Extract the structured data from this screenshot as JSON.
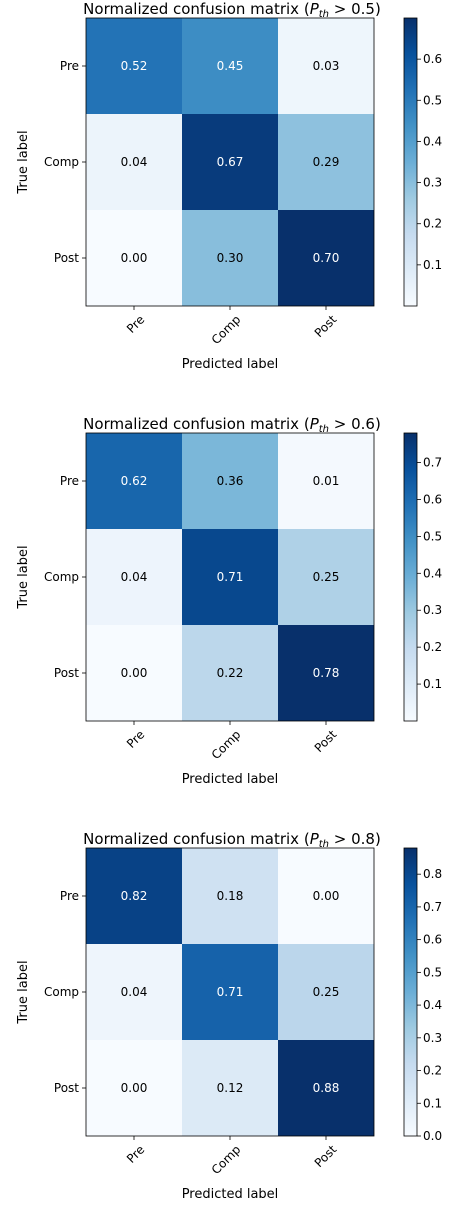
{
  "chart_data": [
    {
      "type": "heatmap",
      "title": "Normalized confusion matrix (",
      "title_math": {
        "symbol": "P",
        "subscript": "th",
        "relation": " > 0.5)"
      },
      "xlabel": "Predicted label",
      "ylabel": "True label",
      "x_categories": [
        "Pre",
        "Comp",
        "Post"
      ],
      "y_categories": [
        "Pre",
        "Comp",
        "Post"
      ],
      "values": [
        [
          0.52,
          0.45,
          0.03
        ],
        [
          0.04,
          0.67,
          0.29
        ],
        [
          0.0,
          0.3,
          0.7
        ]
      ],
      "cell_labels": [
        [
          "0.52",
          "0.45",
          "0.03"
        ],
        [
          "0.04",
          "0.67",
          "0.29"
        ],
        [
          "0.00",
          "0.30",
          "0.70"
        ]
      ],
      "colormap": "Blues",
      "color_range": [
        0.0,
        0.7
      ],
      "colorbar_ticks": [
        0.1,
        0.2,
        0.3,
        0.4,
        0.5,
        0.6
      ],
      "colorbar_tick_labels": [
        "0.1",
        "0.2",
        "0.3",
        "0.4",
        "0.5",
        "0.6"
      ]
    },
    {
      "type": "heatmap",
      "title": "Normalized confusion matrix (",
      "title_math": {
        "symbol": "P",
        "subscript": "th",
        "relation": " > 0.6)"
      },
      "xlabel": "Predicted label",
      "ylabel": "True label",
      "x_categories": [
        "Pre",
        "Comp",
        "Post"
      ],
      "y_categories": [
        "Pre",
        "Comp",
        "Post"
      ],
      "values": [
        [
          0.62,
          0.36,
          0.01
        ],
        [
          0.04,
          0.71,
          0.25
        ],
        [
          0.0,
          0.22,
          0.78
        ]
      ],
      "cell_labels": [
        [
          "0.62",
          "0.36",
          "0.01"
        ],
        [
          "0.04",
          "0.71",
          "0.25"
        ],
        [
          "0.00",
          "0.22",
          "0.78"
        ]
      ],
      "colormap": "Blues",
      "color_range": [
        0.0,
        0.78
      ],
      "colorbar_ticks": [
        0.1,
        0.2,
        0.3,
        0.4,
        0.5,
        0.6,
        0.7
      ],
      "colorbar_tick_labels": [
        "0.1",
        "0.2",
        "0.3",
        "0.4",
        "0.5",
        "0.6",
        "0.7"
      ]
    },
    {
      "type": "heatmap",
      "title": "Normalized confusion matrix (",
      "title_math": {
        "symbol": "P",
        "subscript": "th",
        "relation": " > 0.8)"
      },
      "xlabel": "Predicted label",
      "ylabel": "True label",
      "x_categories": [
        "Pre",
        "Comp",
        "Post"
      ],
      "y_categories": [
        "Pre",
        "Comp",
        "Post"
      ],
      "values": [
        [
          0.82,
          0.18,
          0.0
        ],
        [
          0.04,
          0.71,
          0.25
        ],
        [
          0.0,
          0.12,
          0.88
        ]
      ],
      "cell_labels": [
        [
          "0.82",
          "0.18",
          "0.00"
        ],
        [
          "0.04",
          "0.71",
          "0.25"
        ],
        [
          "0.00",
          "0.12",
          "0.88"
        ]
      ],
      "colormap": "Blues",
      "color_range": [
        0.0,
        0.88
      ],
      "colorbar_ticks": [
        0.0,
        0.1,
        0.2,
        0.3,
        0.4,
        0.5,
        0.6,
        0.7,
        0.8
      ],
      "colorbar_tick_labels": [
        "0.0",
        "0.1",
        "0.2",
        "0.3",
        "0.4",
        "0.5",
        "0.6",
        "0.7",
        "0.8"
      ]
    }
  ]
}
